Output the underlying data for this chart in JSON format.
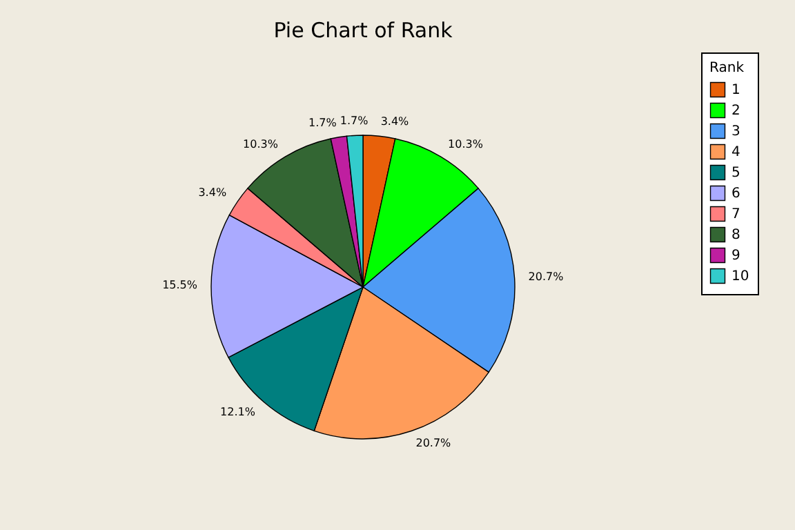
{
  "chart_data": {
    "type": "pie",
    "title": "Pie Chart of Rank",
    "legend_title": "Rank",
    "legend": "top right",
    "categories": [
      "1",
      "2",
      "3",
      "4",
      "5",
      "6",
      "7",
      "8",
      "9",
      "10"
    ],
    "values": [
      3.4,
      10.3,
      20.7,
      20.7,
      12.1,
      15.5,
      3.4,
      10.3,
      1.7,
      1.7
    ],
    "value_labels": [
      "3.4%",
      "10.3%",
      "20.7%",
      "20.7%",
      "12.1%",
      "15.5%",
      "3.4%",
      "10.3%",
      "1.7%",
      "1.7%"
    ],
    "colors": [
      "#e8600a",
      "#00ff00",
      "#4f9bf5",
      "#ff9c5a",
      "#007f7f",
      "#aaaaff",
      "#ff7f7f",
      "#336633",
      "#bf1fa0",
      "#33cccc"
    ]
  }
}
